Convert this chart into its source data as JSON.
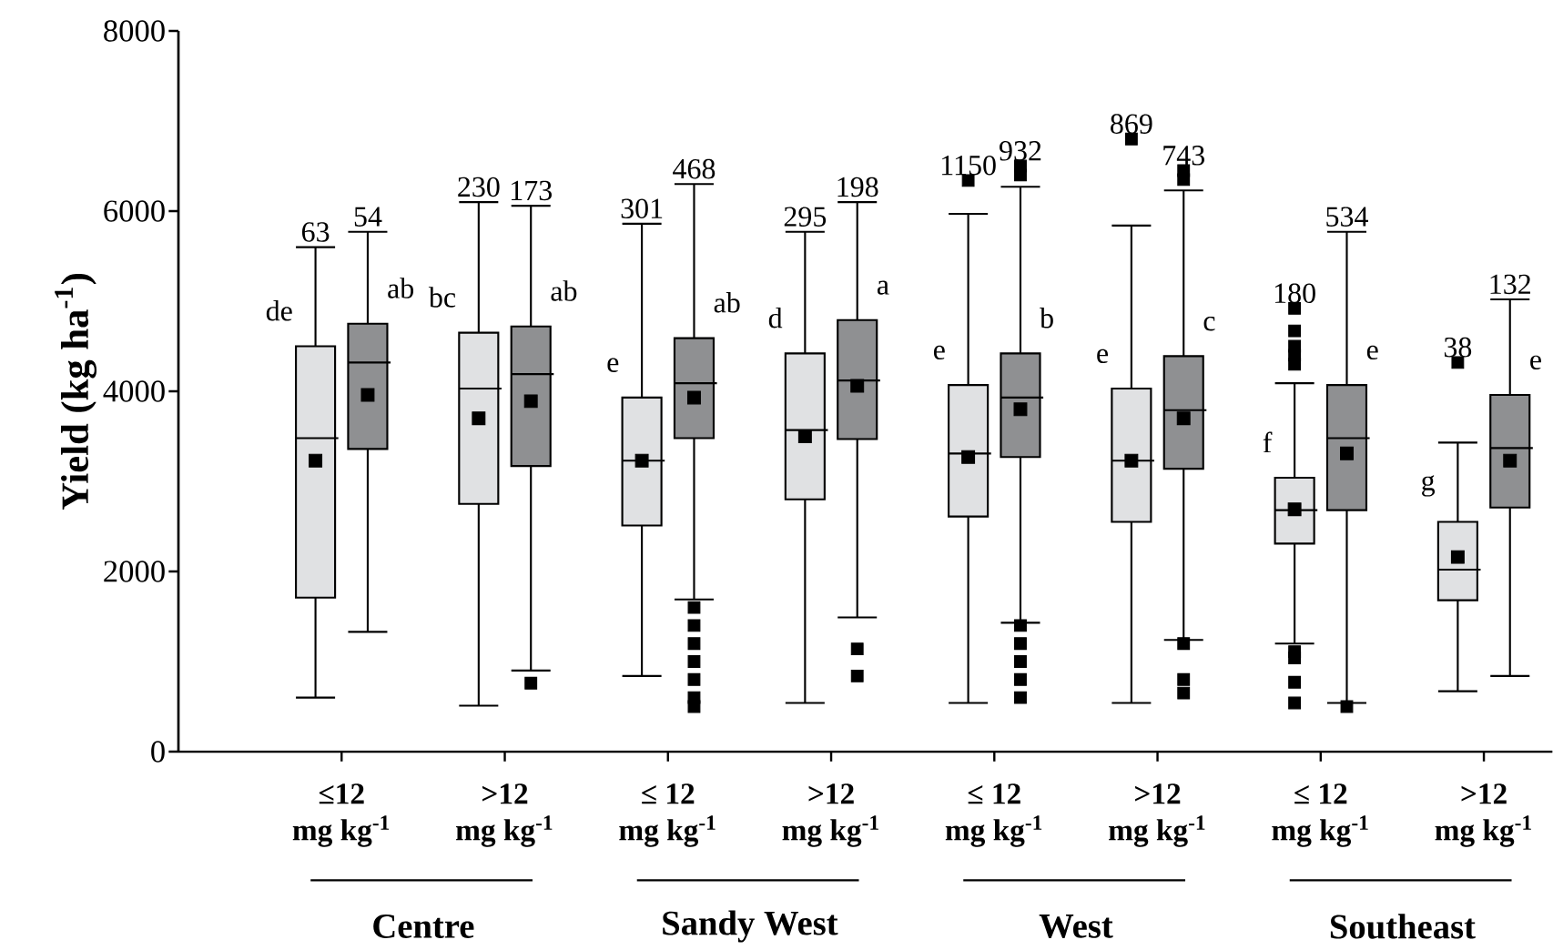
{
  "chart_data": {
    "type": "box",
    "ylabel": "Yield (kg ha$^{-1}$)",
    "categories": [
      "≤12 mg kg$^{-1}$",
      ">12 mg kg$^{-1}$",
      "≤ 12 mg kg$^{-1}$",
      ">12 mg kg$^{-1}$",
      "≤ 12 mg kg$^{-1}$",
      ">12 mg kg$^{-1}$",
      "≤ 12 mg kg$^{-1}$",
      ">12 mg kg$^{-1}$"
    ],
    "ylim": [
      0,
      8000
    ],
    "yticks": [
      0,
      2000,
      4000,
      6000,
      8000
    ],
    "marker": "square",
    "series": [
      {
        "color": "#e0e1e3",
        "boxes": [
          {
            "low": 600,
            "q1": 1710,
            "median": 3480,
            "q3": 4500,
            "high": 5600,
            "mean": 3230
          },
          {
            "low": 510,
            "q1": 2750,
            "median": 4030,
            "q3": 4650,
            "high": 6100,
            "mean": 3700
          },
          {
            "low": 840,
            "q1": 2510,
            "median": 3230,
            "q3": 3930,
            "high": 5860,
            "mean": 3230
          },
          {
            "low": 540,
            "q1": 2800,
            "median": 3570,
            "q3": 4420,
            "high": 5770,
            "mean": 3500
          },
          {
            "low": 540,
            "q1": 2610,
            "median": 3310,
            "q3": 4070,
            "high": 5970,
            "mean": 3270,
            "outliers": [
              6340
            ]
          },
          {
            "low": 540,
            "q1": 2550,
            "median": 3230,
            "q3": 4030,
            "high": 5840,
            "mean": 3230,
            "outliers": [
              6800
            ]
          },
          {
            "low": 1200,
            "q1": 2310,
            "median": 2680,
            "q3": 3040,
            "high": 4090,
            "mean": 2690,
            "outliers": [
              4920,
              4670,
              4500,
              4400,
              4300,
              1110,
              1040,
              770,
              540
            ]
          },
          {
            "low": 670,
            "q1": 1680,
            "median": 2020,
            "q3": 2550,
            "high": 3430,
            "mean": 2160,
            "outliers": [
              4320
            ]
          }
        ]
      },
      {
        "color": "#8f9092",
        "boxes": [
          {
            "low": 1330,
            "q1": 3360,
            "median": 4320,
            "q3": 4750,
            "high": 5770,
            "mean": 3960
          },
          {
            "low": 900,
            "q1": 3170,
            "median": 4190,
            "q3": 4720,
            "high": 6060,
            "mean": 3890,
            "outliers": [
              760
            ]
          },
          {
            "low": 1690,
            "q1": 3480,
            "median": 4090,
            "q3": 4590,
            "high": 6300,
            "mean": 3930,
            "outliers": [
              1600,
              1400,
              1200,
              1000,
              800,
              600,
              500
            ]
          },
          {
            "low": 1490,
            "q1": 3470,
            "median": 4120,
            "q3": 4790,
            "high": 6100,
            "mean": 4060,
            "outliers": [
              1140,
              840
            ]
          },
          {
            "low": 1430,
            "q1": 3270,
            "median": 3930,
            "q3": 4420,
            "high": 6270,
            "mean": 3800,
            "outliers": [
              6500,
              6400,
              1400,
              1200,
              1000,
              800,
              600
            ]
          },
          {
            "low": 1240,
            "q1": 3140,
            "median": 3790,
            "q3": 4390,
            "high": 6230,
            "mean": 3700,
            "outliers": [
              6450,
              6350,
              1200,
              800,
              650
            ]
          },
          {
            "low": 540,
            "q1": 2680,
            "median": 3480,
            "q3": 4070,
            "high": 5770,
            "mean": 3310,
            "outliers": [
              500
            ]
          },
          {
            "low": 840,
            "q1": 2710,
            "median": 3370,
            "q3": 3960,
            "high": 5020,
            "mean": 3230
          }
        ]
      }
    ],
    "annotations": [
      "63",
      "de",
      "54",
      "ab",
      "230",
      "bc",
      "173",
      "ab",
      "301",
      "e",
      "468",
      "ab",
      "295",
      "d",
      "198",
      "a",
      "1150",
      "e",
      "932",
      "b",
      "869",
      "e",
      "743",
      "c",
      "180",
      "f",
      "534",
      "e",
      "38",
      "g",
      "132",
      "e",
      "Centre",
      "Sandy West",
      "West",
      "Southeast"
    ]
  }
}
